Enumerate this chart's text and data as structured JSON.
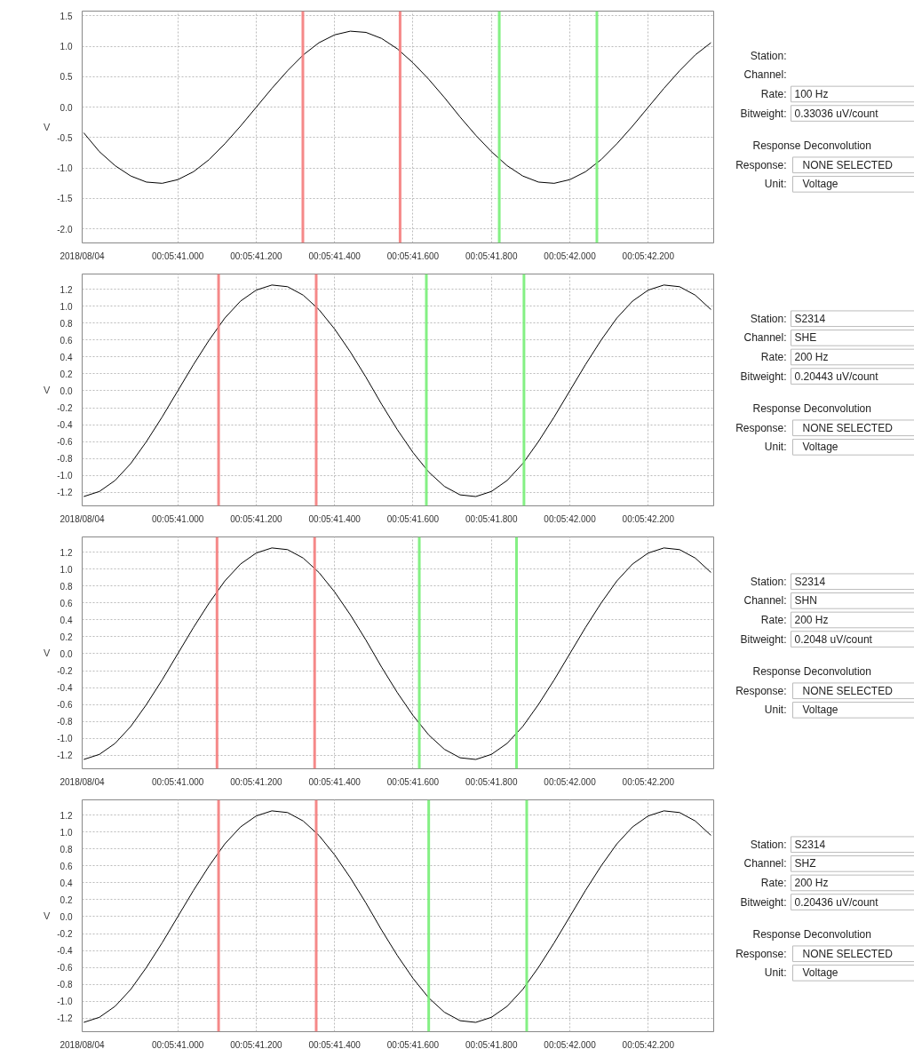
{
  "chart_data": [
    {
      "type": "line",
      "ylabel": "V",
      "x": [
        "2018-08-04T00:05:40.760",
        "2018-08-04T00:05:40.800",
        "2018-08-04T00:05:40.840",
        "2018-08-04T00:05:40.880",
        "2018-08-04T00:05:40.920",
        "2018-08-04T00:05:40.960",
        "2018-08-04T00:05:41.000",
        "2018-08-04T00:05:41.040",
        "2018-08-04T00:05:41.080",
        "2018-08-04T00:05:41.120",
        "2018-08-04T00:05:41.160",
        "2018-08-04T00:05:41.200",
        "2018-08-04T00:05:41.240",
        "2018-08-04T00:05:41.280",
        "2018-08-04T00:05:41.320",
        "2018-08-04T00:05:41.360",
        "2018-08-04T00:05:41.400",
        "2018-08-04T00:05:41.440",
        "2018-08-04T00:05:41.480",
        "2018-08-04T00:05:41.520",
        "2018-08-04T00:05:41.560",
        "2018-08-04T00:05:41.600",
        "2018-08-04T00:05:41.640",
        "2018-08-04T00:05:41.680",
        "2018-08-04T00:05:41.720",
        "2018-08-04T00:05:41.760",
        "2018-08-04T00:05:41.800",
        "2018-08-04T00:05:41.840",
        "2018-08-04T00:05:41.880",
        "2018-08-04T00:05:41.920",
        "2018-08-04T00:05:41.960",
        "2018-08-04T00:05:42.000",
        "2018-08-04T00:05:42.040",
        "2018-08-04T00:05:42.080",
        "2018-08-04T00:05:42.120",
        "2018-08-04T00:05:42.160",
        "2018-08-04T00:05:42.200",
        "2018-08-04T00:05:42.240",
        "2018-08-04T00:05:42.280",
        "2018-08-04T00:05:42.320",
        "2018-08-04T00:05:42.360"
      ],
      "series": [
        {
          "color": "#000000",
          "values": [
            -0.42,
            -0.73,
            -0.96,
            -1.13,
            -1.23,
            -1.25,
            -1.19,
            -1.06,
            -0.86,
            -0.6,
            -0.31,
            0,
            0.31,
            0.6,
            0.86,
            1.06,
            1.19,
            1.25,
            1.23,
            1.13,
            0.96,
            0.73,
            0.46,
            0.16,
            -0.16,
            -0.46,
            -0.73,
            -0.96,
            -1.13,
            -1.23,
            -1.25,
            -1.19,
            -1.06,
            -0.86,
            -0.6,
            -0.31,
            0,
            0.31,
            0.6,
            0.86,
            1.06
          ]
        }
      ],
      "xlim": [
        "2018-08-04T00:05:40.756",
        "2018-08-04T00:05:42.367"
      ],
      "xticks": [
        {
          "value": "2018-08-04T00:05:40.756",
          "label": "2018/08/04"
        },
        {
          "value": "2018-08-04T00:05:41.000",
          "label": "00:05:41.000"
        },
        {
          "value": "2018-08-04T00:05:41.200",
          "label": "00:05:41.200"
        },
        {
          "value": "2018-08-04T00:05:41.400",
          "label": "00:05:41.400"
        },
        {
          "value": "2018-08-04T00:05:41.600",
          "label": "00:05:41.600"
        },
        {
          "value": "2018-08-04T00:05:41.800",
          "label": "00:05:41.800"
        },
        {
          "value": "2018-08-04T00:05:42.000",
          "label": "00:05:42.000"
        },
        {
          "value": "2018-08-04T00:05:42.200",
          "label": "00:05:42.200"
        }
      ],
      "ylim": [
        -2.23,
        1.58
      ],
      "yticks": [
        {
          "value": -2,
          "label": "-2.0"
        },
        {
          "value": -1.5,
          "label": "-1.5"
        },
        {
          "value": -1,
          "label": "-1.0"
        },
        {
          "value": -0.5,
          "label": "-0.5"
        },
        {
          "value": 0,
          "label": "0.0"
        },
        {
          "value": 0.5,
          "label": "0.5"
        },
        {
          "value": 1,
          "label": "1.0"
        },
        {
          "value": 1.5,
          "label": "1.5"
        }
      ],
      "grid": true,
      "ref_lines": [
        {
          "axis": "x",
          "value": "2018-08-04T00:05:41.319",
          "color": "#f47c7c"
        },
        {
          "axis": "x",
          "value": "2018-08-04T00:05:41.567",
          "color": "#f47c7c"
        },
        {
          "axis": "x",
          "value": "2018-08-04T00:05:41.820",
          "color": "#77ee77"
        },
        {
          "axis": "x",
          "value": "2018-08-04T00:05:42.069",
          "color": "#77ee77"
        }
      ]
    },
    {
      "type": "other",
      "annotations": [
        "Station:",
        "Channel:",
        "Rate: 100 Hz",
        "Bitweight: 0.33036 uV/count",
        "Response Deconvolution",
        "Response: NONE SELECTED",
        "Unit: Voltage"
      ]
    },
    {
      "type": "line",
      "ylabel": "V",
      "x": [
        "2018-08-04T00:05:40.760",
        "2018-08-04T00:05:40.800",
        "2018-08-04T00:05:40.840",
        "2018-08-04T00:05:40.880",
        "2018-08-04T00:05:40.920",
        "2018-08-04T00:05:40.960",
        "2018-08-04T00:05:41.000",
        "2018-08-04T00:05:41.040",
        "2018-08-04T00:05:41.080",
        "2018-08-04T00:05:41.120",
        "2018-08-04T00:05:41.160",
        "2018-08-04T00:05:41.200",
        "2018-08-04T00:05:41.240",
        "2018-08-04T00:05:41.280",
        "2018-08-04T00:05:41.320",
        "2018-08-04T00:05:41.360",
        "2018-08-04T00:05:41.400",
        "2018-08-04T00:05:41.440",
        "2018-08-04T00:05:41.480",
        "2018-08-04T00:05:41.520",
        "2018-08-04T00:05:41.560",
        "2018-08-04T00:05:41.600",
        "2018-08-04T00:05:41.640",
        "2018-08-04T00:05:41.680",
        "2018-08-04T00:05:41.720",
        "2018-08-04T00:05:41.760",
        "2018-08-04T00:05:41.800",
        "2018-08-04T00:05:41.840",
        "2018-08-04T00:05:41.880",
        "2018-08-04T00:05:41.920",
        "2018-08-04T00:05:41.960",
        "2018-08-04T00:05:42.000",
        "2018-08-04T00:05:42.040",
        "2018-08-04T00:05:42.080",
        "2018-08-04T00:05:42.120",
        "2018-08-04T00:05:42.160",
        "2018-08-04T00:05:42.200",
        "2018-08-04T00:05:42.240",
        "2018-08-04T00:05:42.280",
        "2018-08-04T00:05:42.320",
        "2018-08-04T00:05:42.360"
      ],
      "series": [
        {
          "color": "#000000",
          "values": [
            -1.25,
            -1.19,
            -1.06,
            -0.86,
            -0.6,
            -0.31,
            0,
            0.31,
            0.6,
            0.86,
            1.06,
            1.19,
            1.25,
            1.23,
            1.13,
            0.96,
            0.73,
            0.46,
            0.16,
            -0.16,
            -0.46,
            -0.73,
            -0.96,
            -1.13,
            -1.23,
            -1.25,
            -1.19,
            -1.06,
            -0.86,
            -0.6,
            -0.31,
            0,
            0.31,
            0.6,
            0.86,
            1.06,
            1.19,
            1.25,
            1.23,
            1.13,
            0.96
          ]
        }
      ],
      "xlim": [
        "2018-08-04T00:05:40.756",
        "2018-08-04T00:05:42.367"
      ],
      "xticks": [
        {
          "value": "2018-08-04T00:05:40.756",
          "label": "2018/08/04"
        },
        {
          "value": "2018-08-04T00:05:41.000",
          "label": "00:05:41.000"
        },
        {
          "value": "2018-08-04T00:05:41.200",
          "label": "00:05:41.200"
        },
        {
          "value": "2018-08-04T00:05:41.400",
          "label": "00:05:41.400"
        },
        {
          "value": "2018-08-04T00:05:41.600",
          "label": "00:05:41.600"
        },
        {
          "value": "2018-08-04T00:05:41.800",
          "label": "00:05:41.800"
        },
        {
          "value": "2018-08-04T00:05:42.000",
          "label": "00:05:42.000"
        },
        {
          "value": "2018-08-04T00:05:42.200",
          "label": "00:05:42.200"
        }
      ],
      "ylim": [
        -1.36,
        1.38
      ],
      "yticks": [
        {
          "value": -1.2,
          "label": "-1.2"
        },
        {
          "value": -1,
          "label": "-1.0"
        },
        {
          "value": -0.8,
          "label": "-0.8"
        },
        {
          "value": -0.6,
          "label": "-0.6"
        },
        {
          "value": -0.4,
          "label": "-0.4"
        },
        {
          "value": -0.2,
          "label": "-0.2"
        },
        {
          "value": 0,
          "label": "0.0"
        },
        {
          "value": 0.2,
          "label": "0.2"
        },
        {
          "value": 0.4,
          "label": "0.4"
        },
        {
          "value": 0.6,
          "label": "0.6"
        },
        {
          "value": 0.8,
          "label": "0.8"
        },
        {
          "value": 1,
          "label": "1.0"
        },
        {
          "value": 1.2,
          "label": "1.2"
        }
      ],
      "grid": true,
      "ref_lines": [
        {
          "axis": "x",
          "value": "2018-08-04T00:05:41.104",
          "color": "#f47c7c"
        },
        {
          "axis": "x",
          "value": "2018-08-04T00:05:41.353",
          "color": "#f47c7c"
        },
        {
          "axis": "x",
          "value": "2018-08-04T00:05:41.634",
          "color": "#77ee77"
        },
        {
          "axis": "x",
          "value": "2018-08-04T00:05:41.883",
          "color": "#77ee77"
        }
      ]
    },
    {
      "type": "other",
      "annotations": [
        "Station: S2314",
        "Channel: SHE",
        "Rate: 200 Hz",
        "Bitweight: 0.20443 uV/count",
        "Response Deconvolution",
        "Response: NONE SELECTED",
        "Unit: Voltage"
      ]
    },
    {
      "type": "line",
      "ylabel": "V",
      "x": [
        "2018-08-04T00:05:40.760",
        "2018-08-04T00:05:40.800",
        "2018-08-04T00:05:40.840",
        "2018-08-04T00:05:40.880",
        "2018-08-04T00:05:40.920",
        "2018-08-04T00:05:40.960",
        "2018-08-04T00:05:41.000",
        "2018-08-04T00:05:41.040",
        "2018-08-04T00:05:41.080",
        "2018-08-04T00:05:41.120",
        "2018-08-04T00:05:41.160",
        "2018-08-04T00:05:41.200",
        "2018-08-04T00:05:41.240",
        "2018-08-04T00:05:41.280",
        "2018-08-04T00:05:41.320",
        "2018-08-04T00:05:41.360",
        "2018-08-04T00:05:41.400",
        "2018-08-04T00:05:41.440",
        "2018-08-04T00:05:41.480",
        "2018-08-04T00:05:41.520",
        "2018-08-04T00:05:41.560",
        "2018-08-04T00:05:41.600",
        "2018-08-04T00:05:41.640",
        "2018-08-04T00:05:41.680",
        "2018-08-04T00:05:41.720",
        "2018-08-04T00:05:41.760",
        "2018-08-04T00:05:41.800",
        "2018-08-04T00:05:41.840",
        "2018-08-04T00:05:41.880",
        "2018-08-04T00:05:41.920",
        "2018-08-04T00:05:41.960",
        "2018-08-04T00:05:42.000",
        "2018-08-04T00:05:42.040",
        "2018-08-04T00:05:42.080",
        "2018-08-04T00:05:42.120",
        "2018-08-04T00:05:42.160",
        "2018-08-04T00:05:42.200",
        "2018-08-04T00:05:42.240",
        "2018-08-04T00:05:42.280",
        "2018-08-04T00:05:42.320",
        "2018-08-04T00:05:42.360"
      ],
      "series": [
        {
          "color": "#000000",
          "values": [
            -1.25,
            -1.19,
            -1.06,
            -0.86,
            -0.6,
            -0.31,
            0,
            0.31,
            0.6,
            0.86,
            1.06,
            1.19,
            1.25,
            1.23,
            1.13,
            0.96,
            0.73,
            0.46,
            0.16,
            -0.16,
            -0.46,
            -0.73,
            -0.96,
            -1.13,
            -1.23,
            -1.25,
            -1.19,
            -1.06,
            -0.86,
            -0.6,
            -0.31,
            0,
            0.31,
            0.6,
            0.86,
            1.06,
            1.19,
            1.25,
            1.23,
            1.13,
            0.96
          ]
        }
      ],
      "xlim": [
        "2018-08-04T00:05:40.756",
        "2018-08-04T00:05:42.367"
      ],
      "xticks": [
        {
          "value": "2018-08-04T00:05:40.756",
          "label": "2018/08/04"
        },
        {
          "value": "2018-08-04T00:05:41.000",
          "label": "00:05:41.000"
        },
        {
          "value": "2018-08-04T00:05:41.200",
          "label": "00:05:41.200"
        },
        {
          "value": "2018-08-04T00:05:41.400",
          "label": "00:05:41.400"
        },
        {
          "value": "2018-08-04T00:05:41.600",
          "label": "00:05:41.600"
        },
        {
          "value": "2018-08-04T00:05:41.800",
          "label": "00:05:41.800"
        },
        {
          "value": "2018-08-04T00:05:42.000",
          "label": "00:05:42.000"
        },
        {
          "value": "2018-08-04T00:05:42.200",
          "label": "00:05:42.200"
        }
      ],
      "ylim": [
        -1.36,
        1.38
      ],
      "yticks": [
        {
          "value": -1.2,
          "label": "-1.2"
        },
        {
          "value": -1,
          "label": "-1.0"
        },
        {
          "value": -0.8,
          "label": "-0.8"
        },
        {
          "value": -0.6,
          "label": "-0.6"
        },
        {
          "value": -0.4,
          "label": "-0.4"
        },
        {
          "value": -0.2,
          "label": "-0.2"
        },
        {
          "value": 0,
          "label": "0.0"
        },
        {
          "value": 0.2,
          "label": "0.2"
        },
        {
          "value": 0.4,
          "label": "0.4"
        },
        {
          "value": 0.6,
          "label": "0.6"
        },
        {
          "value": 0.8,
          "label": "0.8"
        },
        {
          "value": 1,
          "label": "1.0"
        },
        {
          "value": 1.2,
          "label": "1.2"
        }
      ],
      "grid": true,
      "ref_lines": [
        {
          "axis": "x",
          "value": "2018-08-04T00:05:41.100",
          "color": "#f47c7c"
        },
        {
          "axis": "x",
          "value": "2018-08-04T00:05:41.349",
          "color": "#f47c7c"
        },
        {
          "axis": "x",
          "value": "2018-08-04T00:05:41.616",
          "color": "#77ee77"
        },
        {
          "axis": "x",
          "value": "2018-08-04T00:05:41.864",
          "color": "#77ee77"
        }
      ]
    },
    {
      "type": "other",
      "annotations": [
        "Station: S2314",
        "Channel: SHN",
        "Rate: 200 Hz",
        "Bitweight: 0.2048 uV/count",
        "Response Deconvolution",
        "Response: NONE SELECTED",
        "Unit: Voltage"
      ]
    },
    {
      "type": "line",
      "ylabel": "V",
      "x": [
        "2018-08-04T00:05:40.760",
        "2018-08-04T00:05:40.800",
        "2018-08-04T00:05:40.840",
        "2018-08-04T00:05:40.880",
        "2018-08-04T00:05:40.920",
        "2018-08-04T00:05:40.960",
        "2018-08-04T00:05:41.000",
        "2018-08-04T00:05:41.040",
        "2018-08-04T00:05:41.080",
        "2018-08-04T00:05:41.120",
        "2018-08-04T00:05:41.160",
        "2018-08-04T00:05:41.200",
        "2018-08-04T00:05:41.240",
        "2018-08-04T00:05:41.280",
        "2018-08-04T00:05:41.320",
        "2018-08-04T00:05:41.360",
        "2018-08-04T00:05:41.400",
        "2018-08-04T00:05:41.440",
        "2018-08-04T00:05:41.480",
        "2018-08-04T00:05:41.520",
        "2018-08-04T00:05:41.560",
        "2018-08-04T00:05:41.600",
        "2018-08-04T00:05:41.640",
        "2018-08-04T00:05:41.680",
        "2018-08-04T00:05:41.720",
        "2018-08-04T00:05:41.760",
        "2018-08-04T00:05:41.800",
        "2018-08-04T00:05:41.840",
        "2018-08-04T00:05:41.880",
        "2018-08-04T00:05:41.920",
        "2018-08-04T00:05:41.960",
        "2018-08-04T00:05:42.000",
        "2018-08-04T00:05:42.040",
        "2018-08-04T00:05:42.080",
        "2018-08-04T00:05:42.120",
        "2018-08-04T00:05:42.160",
        "2018-08-04T00:05:42.200",
        "2018-08-04T00:05:42.240",
        "2018-08-04T00:05:42.280",
        "2018-08-04T00:05:42.320",
        "2018-08-04T00:05:42.360"
      ],
      "series": [
        {
          "color": "#000000",
          "values": [
            -1.25,
            -1.19,
            -1.06,
            -0.86,
            -0.6,
            -0.31,
            0,
            0.31,
            0.6,
            0.86,
            1.06,
            1.19,
            1.25,
            1.23,
            1.13,
            0.96,
            0.73,
            0.46,
            0.16,
            -0.16,
            -0.46,
            -0.73,
            -0.96,
            -1.13,
            -1.23,
            -1.25,
            -1.19,
            -1.06,
            -0.86,
            -0.6,
            -0.31,
            0,
            0.31,
            0.6,
            0.86,
            1.06,
            1.19,
            1.25,
            1.23,
            1.13,
            0.96
          ]
        }
      ],
      "xlim": [
        "2018-08-04T00:05:40.756",
        "2018-08-04T00:05:42.367"
      ],
      "xticks": [
        {
          "value": "2018-08-04T00:05:40.756",
          "label": "2018/08/04"
        },
        {
          "value": "2018-08-04T00:05:41.000",
          "label": "00:05:41.000"
        },
        {
          "value": "2018-08-04T00:05:41.200",
          "label": "00:05:41.200"
        },
        {
          "value": "2018-08-04T00:05:41.400",
          "label": "00:05:41.400"
        },
        {
          "value": "2018-08-04T00:05:41.600",
          "label": "00:05:41.600"
        },
        {
          "value": "2018-08-04T00:05:41.800",
          "label": "00:05:41.800"
        },
        {
          "value": "2018-08-04T00:05:42.000",
          "label": "00:05:42.000"
        },
        {
          "value": "2018-08-04T00:05:42.200",
          "label": "00:05:42.200"
        }
      ],
      "ylim": [
        -1.36,
        1.38
      ],
      "yticks": [
        {
          "value": -1.2,
          "label": "-1.2"
        },
        {
          "value": -1,
          "label": "-1.0"
        },
        {
          "value": -0.8,
          "label": "-0.8"
        },
        {
          "value": -0.6,
          "label": "-0.6"
        },
        {
          "value": -0.4,
          "label": "-0.4"
        },
        {
          "value": -0.2,
          "label": "-0.2"
        },
        {
          "value": 0,
          "label": "0.0"
        },
        {
          "value": 0.2,
          "label": "0.2"
        },
        {
          "value": 0.4,
          "label": "0.4"
        },
        {
          "value": 0.6,
          "label": "0.6"
        },
        {
          "value": 0.8,
          "label": "0.8"
        },
        {
          "value": 1,
          "label": "1.0"
        },
        {
          "value": 1.2,
          "label": "1.2"
        }
      ],
      "grid": true,
      "ref_lines": [
        {
          "axis": "x",
          "value": "2018-08-04T00:05:41.104",
          "color": "#f47c7c"
        },
        {
          "axis": "x",
          "value": "2018-08-04T00:05:41.353",
          "color": "#f47c7c"
        },
        {
          "axis": "x",
          "value": "2018-08-04T00:05:41.640",
          "color": "#77ee77"
        },
        {
          "axis": "x",
          "value": "2018-08-04T00:05:41.890",
          "color": "#77ee77"
        }
      ]
    },
    {
      "type": "other",
      "annotations": [
        "Station: S2314",
        "Channel: SHZ",
        "Rate: 200 Hz",
        "Bitweight: 0.20436 uV/count",
        "Response Deconvolution",
        "Response: NONE SELECTED",
        "Unit: Voltage"
      ]
    }
  ]
}
